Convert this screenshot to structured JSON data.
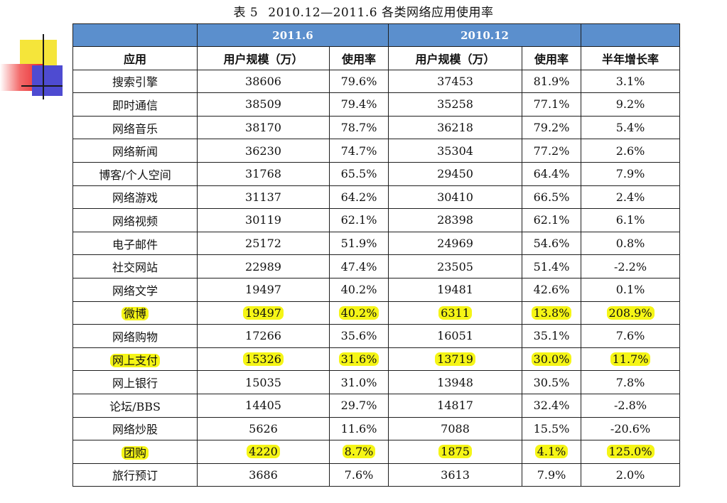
{
  "caption": {
    "label": "表 5",
    "range": "2010.12—2011.6",
    "title": "各类网络应用使用率"
  },
  "table": {
    "periods": [
      "2011.6",
      "2010.12"
    ],
    "columns": [
      "应用",
      "用户规模（万）",
      "使用率",
      "用户规模（万）",
      "使用率",
      "半年增长率"
    ],
    "rows": [
      {
        "app": "搜索引擎",
        "users_2011": "38606",
        "rate_2011": "79.6%",
        "users_2010": "37453",
        "rate_2010": "81.9%",
        "growth": "3.1%",
        "highlight": false
      },
      {
        "app": "即时通信",
        "users_2011": "38509",
        "rate_2011": "79.4%",
        "users_2010": "35258",
        "rate_2010": "77.1%",
        "growth": "9.2%",
        "highlight": false
      },
      {
        "app": "网络音乐",
        "users_2011": "38170",
        "rate_2011": "78.7%",
        "users_2010": "36218",
        "rate_2010": "79.2%",
        "growth": "5.4%",
        "highlight": false
      },
      {
        "app": "网络新闻",
        "users_2011": "36230",
        "rate_2011": "74.7%",
        "users_2010": "35304",
        "rate_2010": "77.2%",
        "growth": "2.6%",
        "highlight": false
      },
      {
        "app": "博客/个人空间",
        "users_2011": "31768",
        "rate_2011": "65.5%",
        "users_2010": "29450",
        "rate_2010": "64.4%",
        "growth": "7.9%",
        "highlight": false
      },
      {
        "app": "网络游戏",
        "users_2011": "31137",
        "rate_2011": "64.2%",
        "users_2010": "30410",
        "rate_2010": "66.5%",
        "growth": "2.4%",
        "highlight": false
      },
      {
        "app": "网络视频",
        "users_2011": "30119",
        "rate_2011": "62.1%",
        "users_2010": "28398",
        "rate_2010": "62.1%",
        "growth": "6.1%",
        "highlight": false
      },
      {
        "app": "电子邮件",
        "users_2011": "25172",
        "rate_2011": "51.9%",
        "users_2010": "24969",
        "rate_2010": "54.6%",
        "growth": "0.8%",
        "highlight": false
      },
      {
        "app": "社交网站",
        "users_2011": "22989",
        "rate_2011": "47.4%",
        "users_2010": "23505",
        "rate_2010": "51.4%",
        "growth": "-2.2%",
        "highlight": false
      },
      {
        "app": "网络文学",
        "users_2011": "19497",
        "rate_2011": "40.2%",
        "users_2010": "19481",
        "rate_2010": "42.6%",
        "growth": "0.1%",
        "highlight": false
      },
      {
        "app": "微博",
        "users_2011": "19497",
        "rate_2011": "40.2%",
        "users_2010": "6311",
        "rate_2010": "13.8%",
        "growth": "208.9%",
        "highlight": true
      },
      {
        "app": "网络购物",
        "users_2011": "17266",
        "rate_2011": "35.6%",
        "users_2010": "16051",
        "rate_2010": "35.1%",
        "growth": "7.6%",
        "highlight": false
      },
      {
        "app": "网上支付",
        "users_2011": "15326",
        "rate_2011": "31.6%",
        "users_2010": "13719",
        "rate_2010": "30.0%",
        "growth": "11.7%",
        "highlight": true
      },
      {
        "app": "网上银行",
        "users_2011": "15035",
        "rate_2011": "31.0%",
        "users_2010": "13948",
        "rate_2010": "30.5%",
        "growth": "7.8%",
        "highlight": false
      },
      {
        "app": "论坛/BBS",
        "users_2011": "14405",
        "rate_2011": "29.7%",
        "users_2010": "14817",
        "rate_2010": "32.4%",
        "growth": "-2.8%",
        "highlight": false
      },
      {
        "app": "网络炒股",
        "users_2011": "5626",
        "rate_2011": "11.6%",
        "users_2010": "7088",
        "rate_2010": "15.5%",
        "growth": "-20.6%",
        "highlight": false
      },
      {
        "app": "团购",
        "users_2011": "4220",
        "rate_2011": "8.7%",
        "users_2010": "1875",
        "rate_2010": "4.1%",
        "growth": "125.0%",
        "highlight": true
      },
      {
        "app": "旅行预订",
        "users_2011": "3686",
        "rate_2011": "7.6%",
        "users_2010": "3613",
        "rate_2010": "7.9%",
        "growth": "2.0%",
        "highlight": false
      }
    ]
  },
  "colors": {
    "header_bg": "#5b8fcd",
    "header_text": "#ffffff",
    "highlight": "#f5f516"
  }
}
